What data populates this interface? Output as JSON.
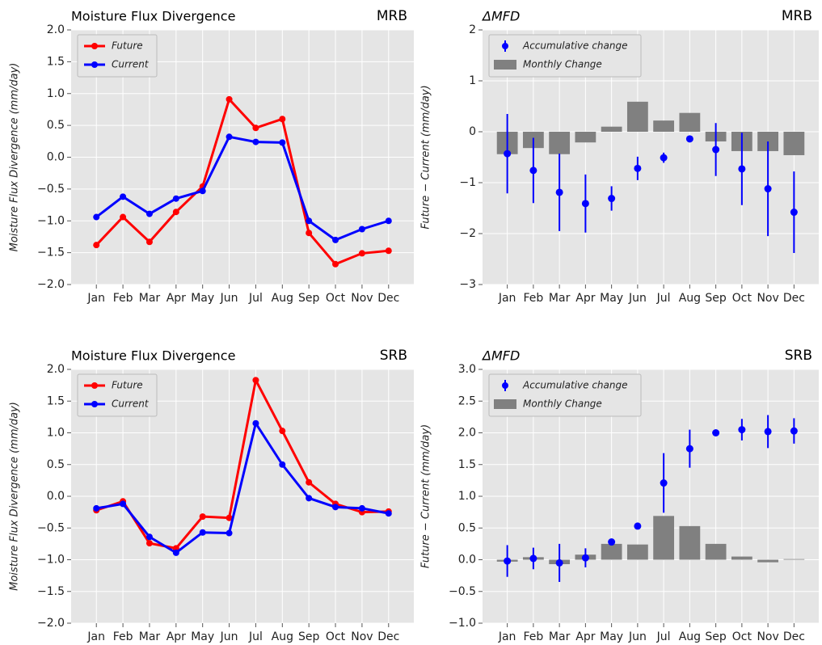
{
  "chart_data": [
    {
      "type": "line",
      "title": "Moisture Flux Divergence",
      "region": "MRB",
      "ylabel": "Moisture Flux Divergence (mm/day)",
      "categories": [
        "Jan",
        "Feb",
        "Mar",
        "Apr",
        "May",
        "Jun",
        "Jul",
        "Aug",
        "Sep",
        "Oct",
        "Nov",
        "Dec"
      ],
      "series": [
        {
          "name": "Future",
          "color": "#ff0000",
          "values": [
            -1.38,
            -0.94,
            -1.33,
            -0.86,
            -0.46,
            0.91,
            0.46,
            0.6,
            -1.19,
            -1.68,
            -1.51,
            -1.47
          ]
        },
        {
          "name": "Current",
          "color": "#0000ff",
          "values": [
            -0.94,
            -0.62,
            -0.89,
            -0.65,
            -0.53,
            0.32,
            0.24,
            0.23,
            -1.0,
            -1.3,
            -1.13,
            -1.0
          ]
        }
      ],
      "ylim": [
        -2,
        2
      ],
      "yticks": [
        {
          "value": 2,
          "label": "2.0"
        },
        {
          "value": 1.5,
          "label": "1.5"
        },
        {
          "value": 1,
          "label": "1.0"
        },
        {
          "value": 0.5,
          "label": "0.5"
        },
        {
          "value": 0,
          "label": "0.0"
        },
        {
          "value": -0.5,
          "label": "−0.5"
        },
        {
          "value": -1,
          "label": "−1.0"
        },
        {
          "value": -1.5,
          "label": "−1.5"
        },
        {
          "value": -2,
          "label": "−2.0"
        }
      ],
      "grid": true
    },
    {
      "type": "bar",
      "title": "ΔMFD",
      "region": "MRB",
      "ylabel": "Future − Current (mm/day)",
      "categories": [
        "Jan",
        "Feb",
        "Mar",
        "Apr",
        "May",
        "Jun",
        "Jul",
        "Aug",
        "Sep",
        "Oct",
        "Nov",
        "Dec"
      ],
      "series": [
        {
          "name": "Accumulative change",
          "color": "#0000ff",
          "values": [
            -0.43,
            -0.76,
            -1.19,
            -1.41,
            -1.31,
            -0.72,
            -0.51,
            -0.14,
            -0.35,
            -0.73,
            -1.12,
            -1.58
          ],
          "errors": [
            0.78,
            0.64,
            0.76,
            0.57,
            0.24,
            0.23,
            0.1,
            0.05,
            0.52,
            0.71,
            0.93,
            0.8
          ]
        },
        {
          "name": "Monthly Change",
          "color": "#808080",
          "values": [
            -0.44,
            -0.32,
            -0.44,
            -0.21,
            0.1,
            0.59,
            0.22,
            0.37,
            -0.19,
            -0.38,
            -0.38,
            -0.46
          ]
        }
      ],
      "ylim": [
        -3,
        2
      ],
      "yticks": [
        2,
        1,
        0,
        {
          "value": -1,
          "label": "−1"
        },
        {
          "value": -2,
          "label": "−2"
        },
        {
          "value": -3,
          "label": "−3"
        }
      ],
      "grid": true
    },
    {
      "type": "line",
      "title": "Moisture Flux Divergence",
      "region": "SRB",
      "ylabel": "Moisture Flux Divergence (mm/day)",
      "categories": [
        "Jan",
        "Feb",
        "Mar",
        "Apr",
        "May",
        "Jun",
        "Jul",
        "Aug",
        "Sep",
        "Oct",
        "Nov",
        "Dec"
      ],
      "series": [
        {
          "name": "Future",
          "color": "#ff0000",
          "values": [
            -0.22,
            -0.08,
            -0.74,
            -0.82,
            -0.32,
            -0.34,
            1.83,
            1.03,
            0.22,
            -0.12,
            -0.25,
            -0.24
          ]
        },
        {
          "name": "Current",
          "color": "#0000ff",
          "values": [
            -0.19,
            -0.12,
            -0.64,
            -0.89,
            -0.57,
            -0.58,
            1.15,
            0.5,
            -0.03,
            -0.17,
            -0.19,
            -0.27
          ]
        }
      ],
      "ylim": [
        -2,
        2
      ],
      "yticks": [
        {
          "value": 2,
          "label": "2.0"
        },
        {
          "value": 1.5,
          "label": "1.5"
        },
        {
          "value": 1,
          "label": "1.0"
        },
        {
          "value": 0.5,
          "label": "0.5"
        },
        {
          "value": 0,
          "label": "0.0"
        },
        {
          "value": -0.5,
          "label": "−0.5"
        },
        {
          "value": -1,
          "label": "−1.0"
        },
        {
          "value": -1.5,
          "label": "−1.5"
        },
        {
          "value": -2,
          "label": "−2.0"
        }
      ],
      "grid": true
    },
    {
      "type": "bar",
      "title": "ΔMFD",
      "region": "SRB",
      "ylabel": "Future − Current (mm/day)",
      "categories": [
        "Jan",
        "Feb",
        "Mar",
        "Apr",
        "May",
        "Jun",
        "Jul",
        "Aug",
        "Sep",
        "Oct",
        "Nov",
        "Dec"
      ],
      "series": [
        {
          "name": "Accumulative change",
          "color": "#0000ff",
          "values": [
            -0.02,
            0.02,
            -0.05,
            0.03,
            0.28,
            0.53,
            1.21,
            1.75,
            2.0,
            2.05,
            2.02,
            2.03
          ],
          "errors": [
            0.25,
            0.17,
            0.3,
            0.15,
            0.03,
            0.03,
            0.47,
            0.3,
            0.03,
            0.17,
            0.26,
            0.2
          ]
        },
        {
          "name": "Monthly Change",
          "color": "#808080",
          "values": [
            -0.03,
            0.04,
            -0.07,
            0.08,
            0.25,
            0.24,
            0.69,
            0.53,
            0.25,
            0.05,
            -0.04,
            0.01
          ]
        }
      ],
      "ylim": [
        -1,
        3
      ],
      "yticks": [
        {
          "value": 3,
          "label": "3.0"
        },
        {
          "value": 2.5,
          "label": "2.5"
        },
        {
          "value": 2,
          "label": "2.0"
        },
        {
          "value": 1.5,
          "label": "1.5"
        },
        {
          "value": 1,
          "label": "1.0"
        },
        {
          "value": 0.5,
          "label": "0.5"
        },
        {
          "value": 0,
          "label": "0.0"
        },
        {
          "value": -0.5,
          "label": "−0.5"
        },
        {
          "value": -1,
          "label": "−1.0"
        }
      ],
      "grid": true
    }
  ]
}
